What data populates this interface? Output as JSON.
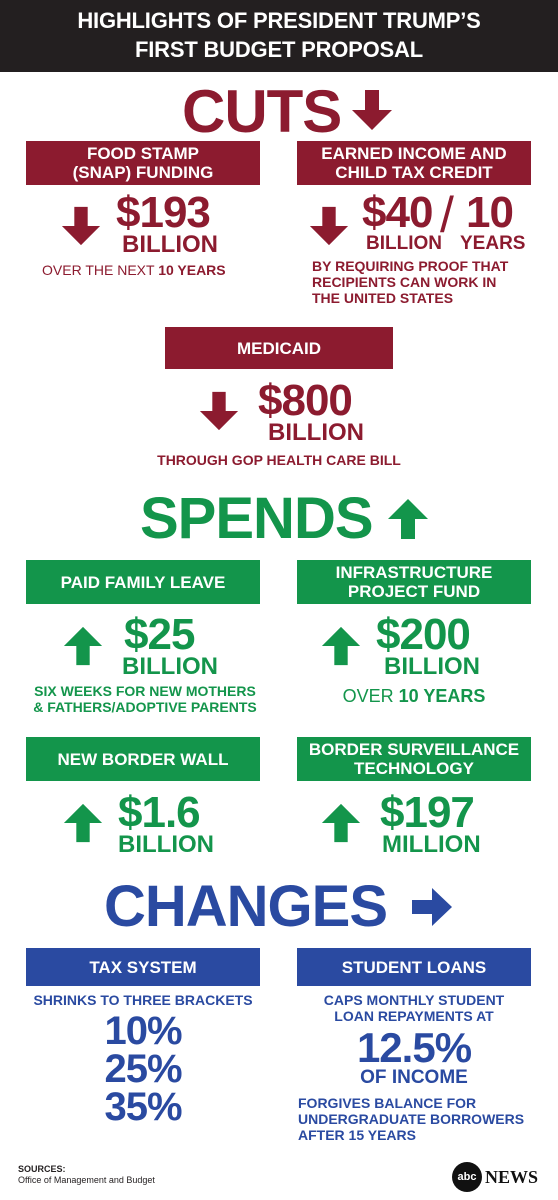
{
  "header": {
    "line1": "HIGHLIGHTS OF PRESIDENT TRUMP’S",
    "line2": "FIRST BUDGET PROPOSAL"
  },
  "colors": {
    "cuts": "#8c1b2f",
    "spends": "#13954b",
    "changes": "#2a4aa1",
    "header_bg": "#231f20"
  },
  "cuts": {
    "title": "CUTS",
    "snap": {
      "label1": "FOOD STAMP",
      "label2": "(SNAP) FUNDING",
      "amount": "$193",
      "unit": "BILLION",
      "note_prefix": "OVER THE NEXT ",
      "note_bold": "10 YEARS"
    },
    "eitc": {
      "label1": "EARNED INCOME  AND",
      "label2": "CHILD TAX CREDIT",
      "amount": "$40",
      "slash": "/",
      "years_num": "10",
      "unit": "BILLION",
      "years_unit": "YEARS",
      "note1": "BY REQUIRING PROOF THAT",
      "note2": "RECIPIENTS CAN WORK IN",
      "note3": "THE UNITED STATES"
    },
    "medicaid": {
      "label": "MEDICAID",
      "amount": "$800",
      "unit": "BILLION",
      "note": "THROUGH GOP HEALTH CARE BILL"
    }
  },
  "spends": {
    "title": "SPENDS",
    "leave": {
      "label": "PAID FAMILY LEAVE",
      "amount": "$25",
      "unit": "BILLION",
      "note1": "SIX WEEKS FOR NEW MOTHERS",
      "note2": "& FATHERS/ADOPTIVE PARENTS"
    },
    "infra": {
      "label1": "INFRASTRUCTURE",
      "label2": "PROJECT FUND",
      "amount": "$200",
      "unit": "BILLION",
      "note_prefix": "OVER ",
      "note_bold": "10 YEARS"
    },
    "wall": {
      "label": "NEW BORDER WALL",
      "amount": "$1.6",
      "unit": "BILLION"
    },
    "surveillance": {
      "label1": "BORDER SURVEILLANCE",
      "label2": "TECHNOLOGY",
      "amount": "$197",
      "unit": "MILLION"
    }
  },
  "changes": {
    "title": "CHANGES",
    "tax": {
      "label": "TAX SYSTEM",
      "note": "SHRINKS TO THREE BRACKETS",
      "brackets": [
        "10%",
        "25%",
        "35%"
      ]
    },
    "loans": {
      "label": "STUDENT LOANS",
      "note1": "CAPS MONTHLY STUDENT",
      "note2": "LOAN REPAYMENTS AT",
      "amount": "12.5%",
      "unit": "OF INCOME",
      "note3": "FORGIVES BALANCE FOR",
      "note4": "UNDERGRADUATE BORROWERS",
      "note5": "AFTER 15 YEARS"
    }
  },
  "footer": {
    "sources_label": "SOURCES:",
    "sources_text": "Office of Management and Budget",
    "logo_mark": "abc",
    "logo_text": "NEWS"
  }
}
